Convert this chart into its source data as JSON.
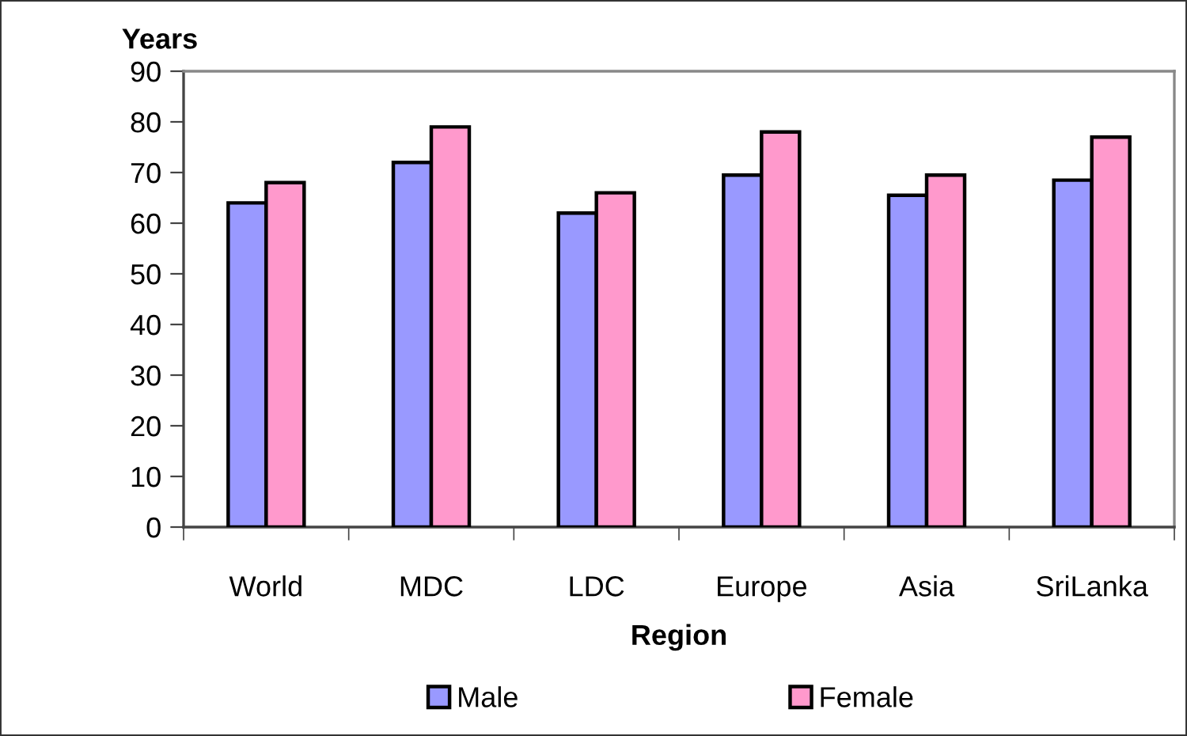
{
  "chart_data": {
    "type": "bar",
    "xlabel": "Region",
    "ylabel": "Years",
    "categories": [
      "World",
      "MDC",
      "LDC",
      "Europe",
      "Asia",
      "SriLanka"
    ],
    "series": [
      {
        "name": "Male",
        "color": "#9999ff",
        "values": [
          64,
          72,
          62,
          69.5,
          65.5,
          68.5
        ]
      },
      {
        "name": "Female",
        "color": "#ff99cc",
        "values": [
          68,
          79,
          66,
          78,
          69.5,
          77
        ]
      }
    ],
    "ylim": [
      0,
      90
    ],
    "yticks": [
      0,
      10,
      20,
      30,
      40,
      50,
      60,
      70,
      80,
      90
    ],
    "grid": false,
    "legend": "bottom"
  }
}
